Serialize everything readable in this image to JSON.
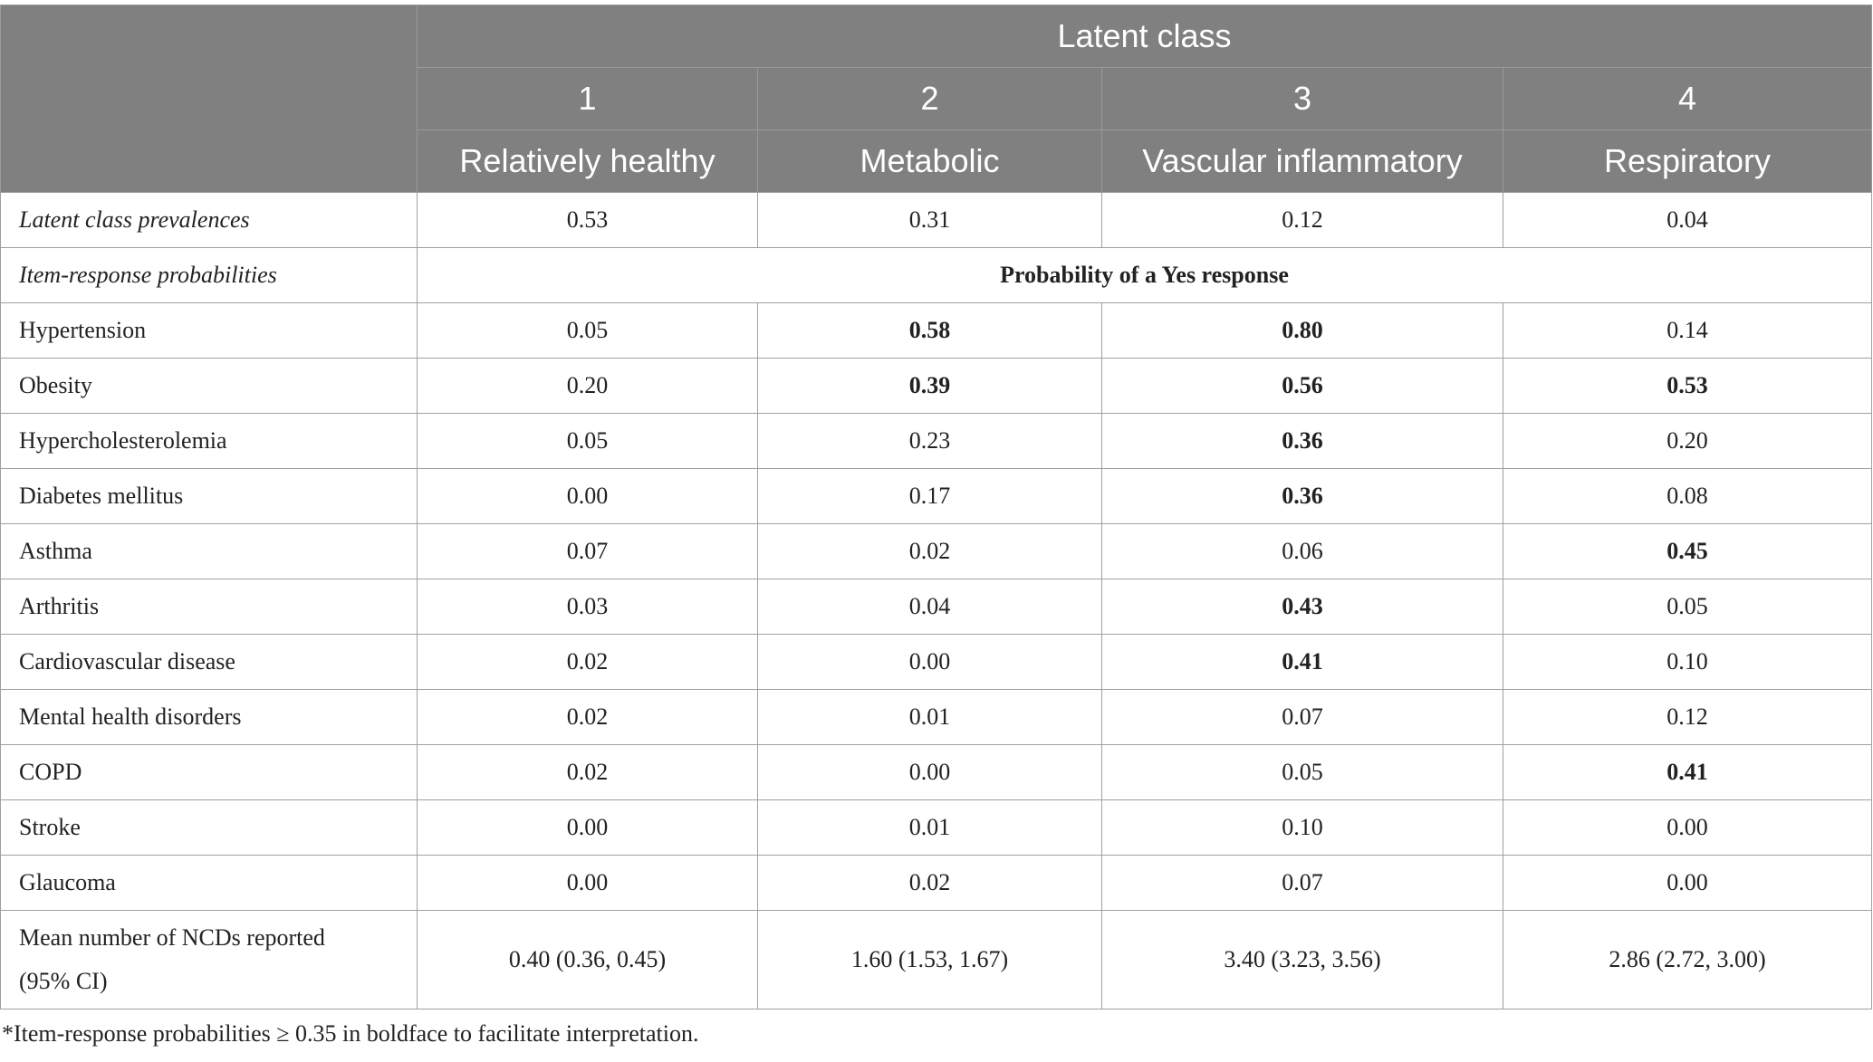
{
  "header": {
    "group": "Latent class",
    "numbers": [
      "1",
      "2",
      "3",
      "4"
    ],
    "names": [
      "Relatively healthy",
      "Metabolic",
      "Vascular inflammatory",
      "Respiratory"
    ]
  },
  "prevalence": {
    "label": "Latent class prevalences",
    "values": [
      "0.53",
      "0.31",
      "0.12",
      "0.04"
    ]
  },
  "item_response": {
    "label": "Item-response probabilities",
    "subheader": "Probability of a Yes response"
  },
  "rows": [
    {
      "label": "Hypertension",
      "values": [
        "0.05",
        "0.58",
        "0.80",
        "0.14"
      ],
      "bold": [
        false,
        true,
        true,
        false
      ]
    },
    {
      "label": "Obesity",
      "values": [
        "0.20",
        "0.39",
        "0.56",
        "0.53"
      ],
      "bold": [
        false,
        true,
        true,
        true
      ]
    },
    {
      "label": "Hypercholesterolemia",
      "values": [
        "0.05",
        "0.23",
        "0.36",
        "0.20"
      ],
      "bold": [
        false,
        false,
        true,
        false
      ]
    },
    {
      "label": "Diabetes mellitus",
      "values": [
        "0.00",
        "0.17",
        "0.36",
        "0.08"
      ],
      "bold": [
        false,
        false,
        true,
        false
      ]
    },
    {
      "label": "Asthma",
      "values": [
        "0.07",
        "0.02",
        "0.06",
        "0.45"
      ],
      "bold": [
        false,
        false,
        false,
        true
      ]
    },
    {
      "label": "Arthritis",
      "values": [
        "0.03",
        "0.04",
        "0.43",
        "0.05"
      ],
      "bold": [
        false,
        false,
        true,
        false
      ]
    },
    {
      "label": "Cardiovascular disease",
      "values": [
        "0.02",
        "0.00",
        "0.41",
        "0.10"
      ],
      "bold": [
        false,
        false,
        true,
        false
      ]
    },
    {
      "label": "Mental health disorders",
      "values": [
        "0.02",
        "0.01",
        "0.07",
        "0.12"
      ],
      "bold": [
        false,
        false,
        false,
        false
      ]
    },
    {
      "label": "COPD",
      "values": [
        "0.02",
        "0.00",
        "0.05",
        "0.41"
      ],
      "bold": [
        false,
        false,
        false,
        true
      ]
    },
    {
      "label": "Stroke",
      "values": [
        "0.00",
        "0.01",
        "0.10",
        "0.00"
      ],
      "bold": [
        false,
        false,
        false,
        false
      ]
    },
    {
      "label": "Glaucoma",
      "values": [
        "0.00",
        "0.02",
        "0.07",
        "0.00"
      ],
      "bold": [
        false,
        false,
        false,
        false
      ]
    }
  ],
  "mean_row": {
    "label_line1": "Mean number of NCDs reported",
    "label_line2": "(95% CI)",
    "values": [
      "0.40 (0.36, 0.45)",
      "1.60 (1.53, 1.67)",
      "3.40 (3.23, 3.56)",
      "2.86 (2.72, 3.00)"
    ]
  },
  "footnote": "*Item-response probabilities ≥ 0.35 in boldface to facilitate interpretation."
}
